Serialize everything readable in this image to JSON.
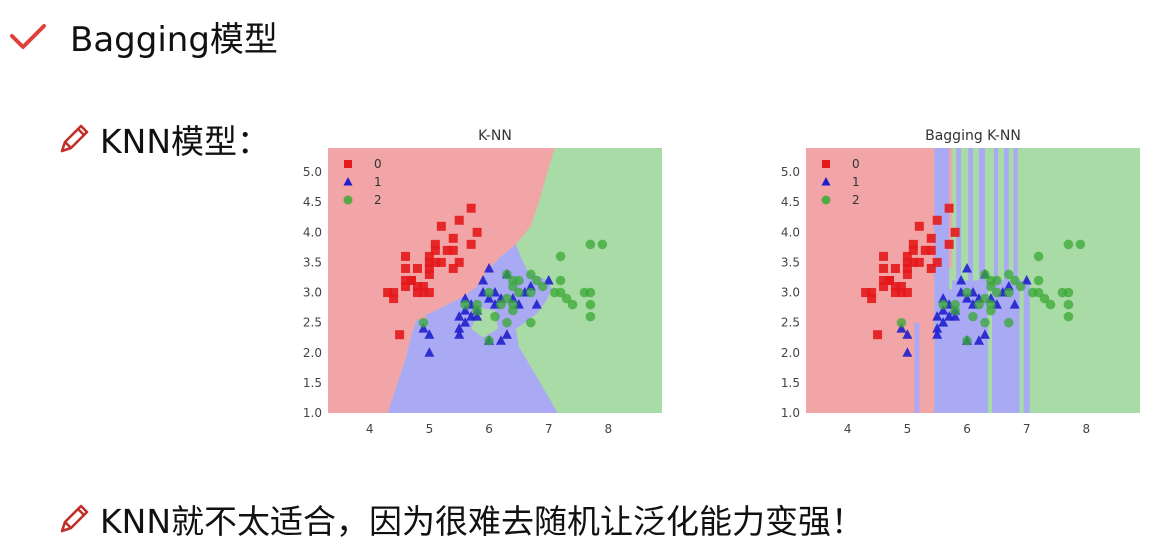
{
  "slide": {
    "title": "Bagging模型",
    "subtitle_knn": "KNN模型：",
    "conclusion": "KNN就不太适合，因为很难去随机让泛化能力变强！"
  },
  "colors": {
    "class0": "#e41a1c",
    "class1": "#1f1fcc",
    "class2": "#3aaa35",
    "region0": "#f2a5a7",
    "region1": "#a9a9f4",
    "region2": "#a8dba5",
    "check": "#e0403a",
    "pencil": "#c0302a"
  },
  "icons": {
    "title": "checkmark-icon",
    "bullet": "pencil-icon"
  },
  "chart_data": [
    {
      "type": "scatter",
      "title": "K-NN",
      "xlim": [
        3.3,
        8.9
      ],
      "ylim": [
        1.0,
        5.4
      ],
      "xticks": [
        4,
        5,
        6,
        7,
        8
      ],
      "yticks": [
        "1.0",
        "1.5",
        "2.0",
        "2.5",
        "3.0",
        "3.5",
        "4.0",
        "4.5",
        "5.0"
      ],
      "legend": [
        "0",
        "1",
        "2"
      ],
      "legend_position": "top-left",
      "series": [
        {
          "name": "0",
          "marker": "square",
          "points": [
            [
              4.3,
              3.0
            ],
            [
              4.4,
              2.9
            ],
            [
              4.4,
              3.0
            ],
            [
              4.5,
              2.3
            ],
            [
              4.6,
              3.1
            ],
            [
              4.6,
              3.4
            ],
            [
              4.6,
              3.6
            ],
            [
              4.6,
              3.2
            ],
            [
              4.7,
              3.2
            ],
            [
              4.7,
              3.2
            ],
            [
              4.8,
              3.4
            ],
            [
              4.8,
              3.0
            ],
            [
              4.8,
              3.1
            ],
            [
              4.9,
              3.0
            ],
            [
              4.9,
              3.1
            ],
            [
              5.0,
              3.6
            ],
            [
              5.0,
              3.4
            ],
            [
              5.0,
              3.0
            ],
            [
              5.0,
              3.3
            ],
            [
              5.0,
              3.5
            ],
            [
              5.1,
              3.5
            ],
            [
              5.1,
              3.8
            ],
            [
              5.1,
              3.7
            ],
            [
              5.2,
              3.5
            ],
            [
              5.2,
              4.1
            ],
            [
              5.3,
              3.7
            ],
            [
              5.4,
              3.9
            ],
            [
              5.4,
              3.4
            ],
            [
              5.4,
              3.7
            ],
            [
              5.5,
              4.2
            ],
            [
              5.5,
              3.5
            ],
            [
              5.7,
              4.4
            ],
            [
              5.7,
              3.8
            ],
            [
              5.8,
              4.0
            ]
          ]
        },
        {
          "name": "1",
          "marker": "triangle",
          "points": [
            [
              4.9,
              2.4
            ],
            [
              5.0,
              2.0
            ],
            [
              5.0,
              2.3
            ],
            [
              5.5,
              2.3
            ],
            [
              5.5,
              2.4
            ],
            [
              5.5,
              2.6
            ],
            [
              5.6,
              2.9
            ],
            [
              5.6,
              2.5
            ],
            [
              5.6,
              2.7
            ],
            [
              5.7,
              2.8
            ],
            [
              5.7,
              2.6
            ],
            [
              5.8,
              2.7
            ],
            [
              5.8,
              2.6
            ],
            [
              5.9,
              3.0
            ],
            [
              5.9,
              3.2
            ],
            [
              6.0,
              2.2
            ],
            [
              6.0,
              2.9
            ],
            [
              6.0,
              3.4
            ],
            [
              6.1,
              2.8
            ],
            [
              6.1,
              3.0
            ],
            [
              6.2,
              2.2
            ],
            [
              6.2,
              2.9
            ],
            [
              6.3,
              2.3
            ],
            [
              6.3,
              3.3
            ],
            [
              6.4,
              2.9
            ],
            [
              6.5,
              2.8
            ],
            [
              6.6,
              3.0
            ],
            [
              6.7,
              3.1
            ],
            [
              6.8,
              2.8
            ],
            [
              7.0,
              3.2
            ]
          ]
        },
        {
          "name": "2",
          "marker": "circle",
          "points": [
            [
              4.9,
              2.5
            ],
            [
              5.6,
              2.8
            ],
            [
              5.8,
              2.7
            ],
            [
              5.8,
              2.8
            ],
            [
              6.0,
              2.2
            ],
            [
              6.0,
              3.0
            ],
            [
              6.1,
              2.6
            ],
            [
              6.2,
              2.8
            ],
            [
              6.3,
              2.5
            ],
            [
              6.3,
              2.9
            ],
            [
              6.3,
              3.3
            ],
            [
              6.4,
              2.7
            ],
            [
              6.4,
              2.8
            ],
            [
              6.4,
              3.1
            ],
            [
              6.4,
              3.2
            ],
            [
              6.5,
              3.0
            ],
            [
              6.5,
              3.2
            ],
            [
              6.7,
              2.5
            ],
            [
              6.7,
              3.0
            ],
            [
              6.7,
              3.3
            ],
            [
              6.8,
              3.2
            ],
            [
              6.9,
              3.1
            ],
            [
              7.1,
              3.0
            ],
            [
              7.2,
              3.0
            ],
            [
              7.2,
              3.2
            ],
            [
              7.2,
              3.6
            ],
            [
              7.3,
              2.9
            ],
            [
              7.4,
              2.8
            ],
            [
              7.6,
              3.0
            ],
            [
              7.7,
              2.6
            ],
            [
              7.7,
              2.8
            ],
            [
              7.7,
              3.0
            ],
            [
              7.7,
              3.8
            ],
            [
              7.9,
              3.8
            ]
          ]
        }
      ]
    },
    {
      "type": "scatter",
      "title": "Bagging K-NN",
      "xlim": [
        3.3,
        8.9
      ],
      "ylim": [
        1.0,
        5.4
      ],
      "xticks": [
        4,
        5,
        6,
        7,
        8
      ],
      "yticks": [
        "1.0",
        "1.5",
        "2.0",
        "2.5",
        "3.0",
        "3.5",
        "4.0",
        "4.5",
        "5.0"
      ],
      "legend": [
        "0",
        "1",
        "2"
      ],
      "legend_position": "top-left"
    }
  ]
}
